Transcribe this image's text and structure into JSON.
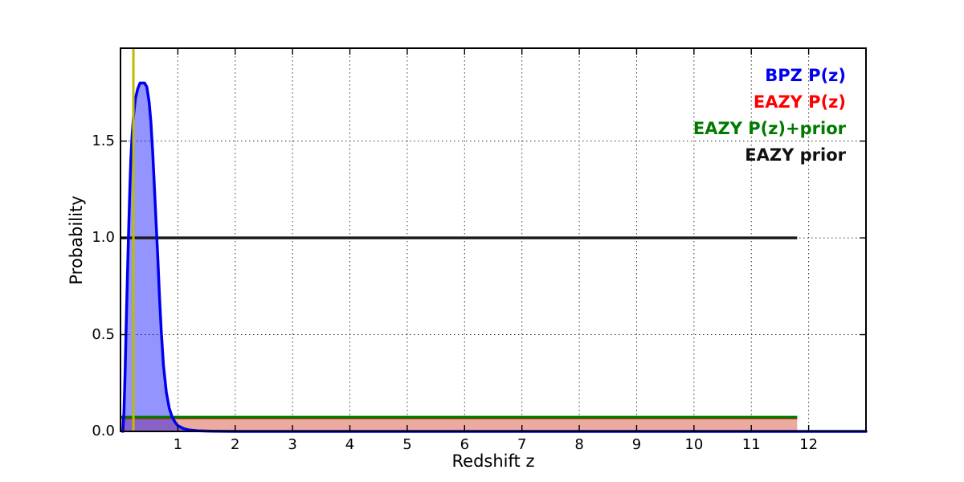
{
  "chart_data": {
    "type": "line",
    "title": "",
    "xlabel": "Redshift z",
    "ylabel": "Probability",
    "xlim": [
      0,
      13.0
    ],
    "ylim": [
      0,
      1.98
    ],
    "xticks": [
      1,
      2,
      3,
      4,
      5,
      6,
      7,
      8,
      9,
      10,
      11,
      12
    ],
    "xtick_labels": [
      "1",
      "2",
      "3",
      "4",
      "5",
      "6",
      "7",
      "8",
      "9",
      "10",
      "11",
      "12"
    ],
    "yticks": [
      0.0,
      0.5,
      1.0,
      1.5
    ],
    "ytick_labels": [
      "0.0",
      "0.5",
      "1.0",
      "1.5"
    ],
    "grid": true,
    "grid_style": "dotted",
    "grid_color": "#333333",
    "spine_color": "#000000",
    "series": [
      {
        "name": "BPZ P(z)",
        "kind": "curve",
        "color": "#0000ee",
        "fill": "rgba(0,0,255,0.42)",
        "linewidth": 3.5,
        "points": [
          [
            0.04,
            0.0
          ],
          [
            0.06,
            0.1
          ],
          [
            0.08,
            0.3
          ],
          [
            0.1,
            0.55
          ],
          [
            0.12,
            0.8
          ],
          [
            0.14,
            1.02
          ],
          [
            0.16,
            1.22
          ],
          [
            0.18,
            1.4
          ],
          [
            0.2,
            1.52
          ],
          [
            0.23,
            1.64
          ],
          [
            0.26,
            1.72
          ],
          [
            0.3,
            1.77
          ],
          [
            0.34,
            1.8
          ],
          [
            0.42,
            1.8
          ],
          [
            0.46,
            1.78
          ],
          [
            0.5,
            1.7
          ],
          [
            0.53,
            1.6
          ],
          [
            0.56,
            1.45
          ],
          [
            0.59,
            1.27
          ],
          [
            0.62,
            1.08
          ],
          [
            0.65,
            0.9
          ],
          [
            0.68,
            0.7
          ],
          [
            0.71,
            0.52
          ],
          [
            0.75,
            0.34
          ],
          [
            0.8,
            0.2
          ],
          [
            0.85,
            0.12
          ],
          [
            0.9,
            0.075
          ],
          [
            0.95,
            0.048
          ],
          [
            1.0,
            0.03
          ],
          [
            1.1,
            0.014
          ],
          [
            1.2,
            0.007
          ],
          [
            1.35,
            0.003
          ],
          [
            1.6,
            0.001
          ],
          [
            2.0,
            0.0
          ],
          [
            13.0,
            0.0
          ]
        ]
      },
      {
        "name": "EAZY P(z)",
        "kind": "hline",
        "color": "#ff0000",
        "fill": "#edaaa0",
        "linewidth": 2.5,
        "value": 0.068,
        "x_range": [
          0,
          11.8
        ]
      },
      {
        "name": "EAZY P(z)+prior",
        "kind": "hline",
        "color": "#007a00",
        "fill": null,
        "linewidth": 3.5,
        "value": 0.073,
        "x_range": [
          0,
          11.8
        ]
      },
      {
        "name": "EAZY prior",
        "kind": "hline",
        "color": "#1c1c1c",
        "fill": null,
        "linewidth": 3.5,
        "value": 1.0,
        "x_range": [
          0,
          11.8
        ]
      },
      {
        "name": "spec-z marker",
        "kind": "vline",
        "color": "#bdbd00",
        "linewidth": 3,
        "value": 0.225
      }
    ],
    "legend": {
      "position": "upper right",
      "frame": false,
      "entries": [
        {
          "label": "BPZ P(z)",
          "color": "#0000f0"
        },
        {
          "label": "EAZY P(z)",
          "color": "#ff0000"
        },
        {
          "label": "EAZY P(z)+prior",
          "color": "#007a00"
        },
        {
          "label": "EAZY prior",
          "color": "#111111"
        }
      ]
    }
  }
}
